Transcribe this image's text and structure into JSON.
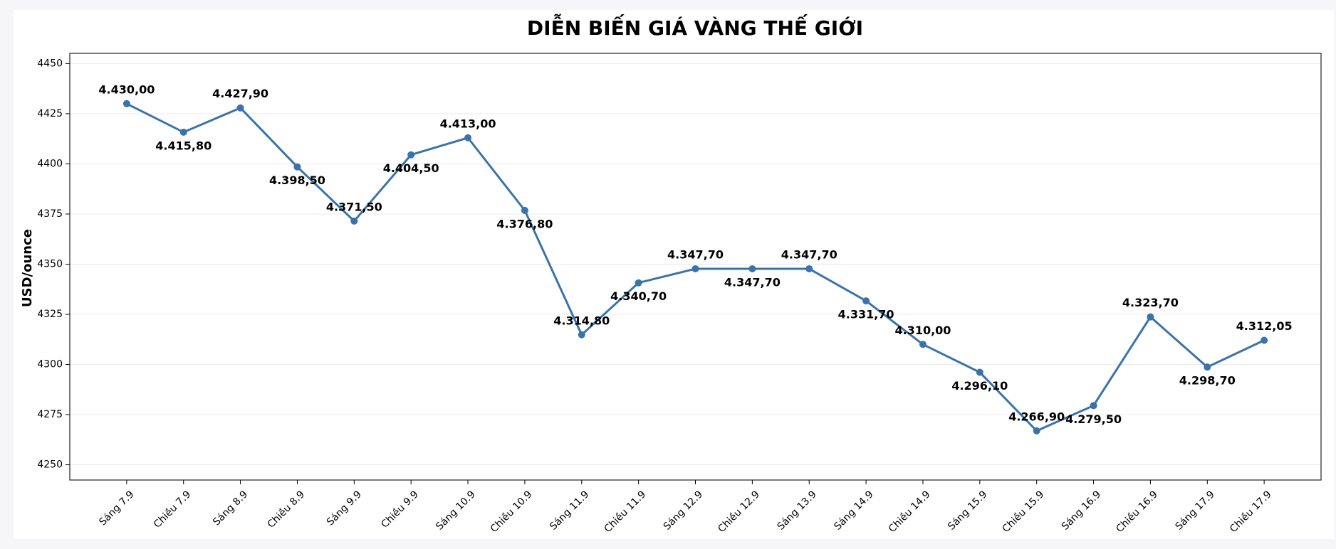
{
  "chart_data": {
    "type": "line",
    "title": "DIỄN BIẾN GIÁ VÀNG THẾ GIỚI",
    "y_label": "USD/ounce",
    "categories": [
      "Sáng 7.9",
      "Chiều 7.9",
      "Sáng 8.9",
      "Chiều 8.9",
      "Sáng 9.9",
      "Chiều 9.9",
      "Sáng 10.9",
      "Chiều 10.9",
      "Sáng 11.9",
      "Chiều 11.9",
      "Sáng 12.9",
      "Chiều 12.9",
      "Sáng 13.9",
      "Sáng 14.9",
      "Chiều 14.9",
      "Sáng 15.9",
      "Chiều 15.9",
      "Sáng 16.9",
      "Chiều 16.9",
      "Sáng 17.9",
      "Chiều 17.9"
    ],
    "series": [
      {
        "color": "#3a73aa",
        "values": [
          4430.0,
          4415.8,
          4427.9,
          4398.5,
          4371.5,
          4404.5,
          4413.0,
          4376.8,
          4314.8,
          4340.7,
          4347.7,
          4347.7,
          4347.7,
          4331.7,
          4310.0,
          4296.1,
          4266.9,
          4279.5,
          4323.7,
          4298.7,
          4312.05
        ],
        "value_labels": [
          "4.430,00",
          "4.415,80",
          "4.427,90",
          "4.398,50",
          "4.371,50",
          "4.404,50",
          "4.413,00",
          "4.376,80",
          "4.314,80",
          "4.340,70",
          "4.347,70",
          "4.347,70",
          "4.347,70",
          "4.331,70",
          "4.310,00",
          "4.296,10",
          "4.266,90",
          "4.279,50",
          "4.323,70",
          "4.298,70",
          "4.312,05"
        ]
      }
    ],
    "ylim": [
      4242.4,
      4455.1
    ],
    "yticks": [
      4250,
      4275,
      4300,
      4325,
      4350,
      4375,
      4400,
      4425,
      4450
    ],
    "grid": true
  }
}
